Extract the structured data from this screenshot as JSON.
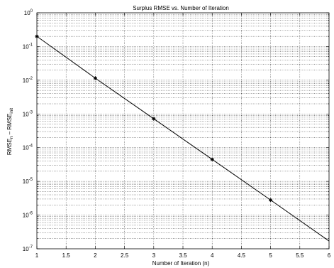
{
  "chart_data": {
    "type": "line",
    "title": "Surplus RMSE vs. Number of Iteration",
    "xlabel": "Number of Iteration (n)",
    "ylabel": {
      "base1": "RMSE",
      "sub1": "n",
      "middle": " – ",
      "base2": "RMSE",
      "sub2": "init"
    },
    "x_scale": "linear",
    "y_scale": "log",
    "xlim": [
      1,
      6
    ],
    "ylim": [
      1e-07,
      1
    ],
    "x_ticks": [
      1,
      1.5,
      2,
      2.5,
      3,
      3.5,
      4,
      4.5,
      5,
      5.5,
      6
    ],
    "x_tick_labels": [
      "1",
      "1.5",
      "2",
      "2.5",
      "3",
      "3.5",
      "4",
      "4.5",
      "5",
      "5.5",
      "6"
    ],
    "y_ticks": [
      {
        "value": 1e-07,
        "base": "10",
        "exp": "-7"
      },
      {
        "value": 1e-06,
        "base": "10",
        "exp": "-6"
      },
      {
        "value": 1e-05,
        "base": "10",
        "exp": "-5"
      },
      {
        "value": 0.0001,
        "base": "10",
        "exp": "-4"
      },
      {
        "value": 0.001,
        "base": "10",
        "exp": "-3"
      },
      {
        "value": 0.01,
        "base": "10",
        "exp": "-2"
      },
      {
        "value": 0.1,
        "base": "10",
        "exp": "-1"
      },
      {
        "value": 1,
        "base": "10",
        "exp": "0"
      }
    ],
    "grid": true,
    "grid_style": "dotted",
    "series": [
      {
        "x": [
          1,
          2,
          3,
          4,
          5,
          6
        ],
        "y": [
          0.2,
          0.0115,
          0.00072,
          4.5e-05,
          2.8e-06,
          1.7e-07
        ],
        "marker": "asterisk",
        "line_color": "#000000",
        "marked_points": [
          1,
          2,
          3,
          4,
          5
        ]
      }
    ]
  }
}
